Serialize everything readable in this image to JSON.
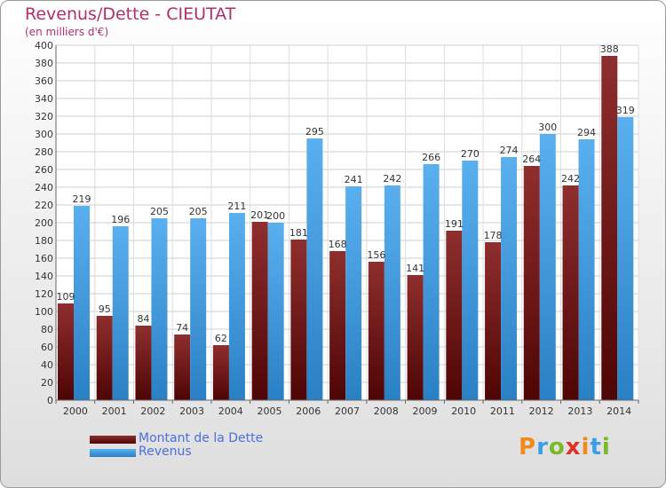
{
  "chart_data": {
    "type": "bar",
    "title": "Revenus/Dette - CIEUTAT",
    "subtitle": "(en milliers d'€)",
    "categories": [
      "2000",
      "2001",
      "2002",
      "2003",
      "2004",
      "2005",
      "2006",
      "2007",
      "2008",
      "2009",
      "2010",
      "2011",
      "2012",
      "2013",
      "2014"
    ],
    "series": [
      {
        "name": "Montant de la Dette",
        "color": "#7a1c1c",
        "values": [
          109,
          95,
          84,
          74,
          62,
          201,
          181,
          168,
          156,
          141,
          191,
          178,
          264,
          242,
          388
        ]
      },
      {
        "name": "Revenus",
        "color": "#3a9ee6",
        "values": [
          219,
          196,
          205,
          205,
          211,
          200,
          295,
          241,
          242,
          266,
          270,
          274,
          300,
          294,
          319
        ]
      }
    ],
    "ylim": [
      0,
      400
    ],
    "ytick_step": 20,
    "grid": true,
    "legend_position": "bottom-left"
  },
  "logo_text": "Proxiti",
  "logo_colors": [
    "#f08a1c",
    "#3a9ee6",
    "#7ab829",
    "#e0302a"
  ]
}
